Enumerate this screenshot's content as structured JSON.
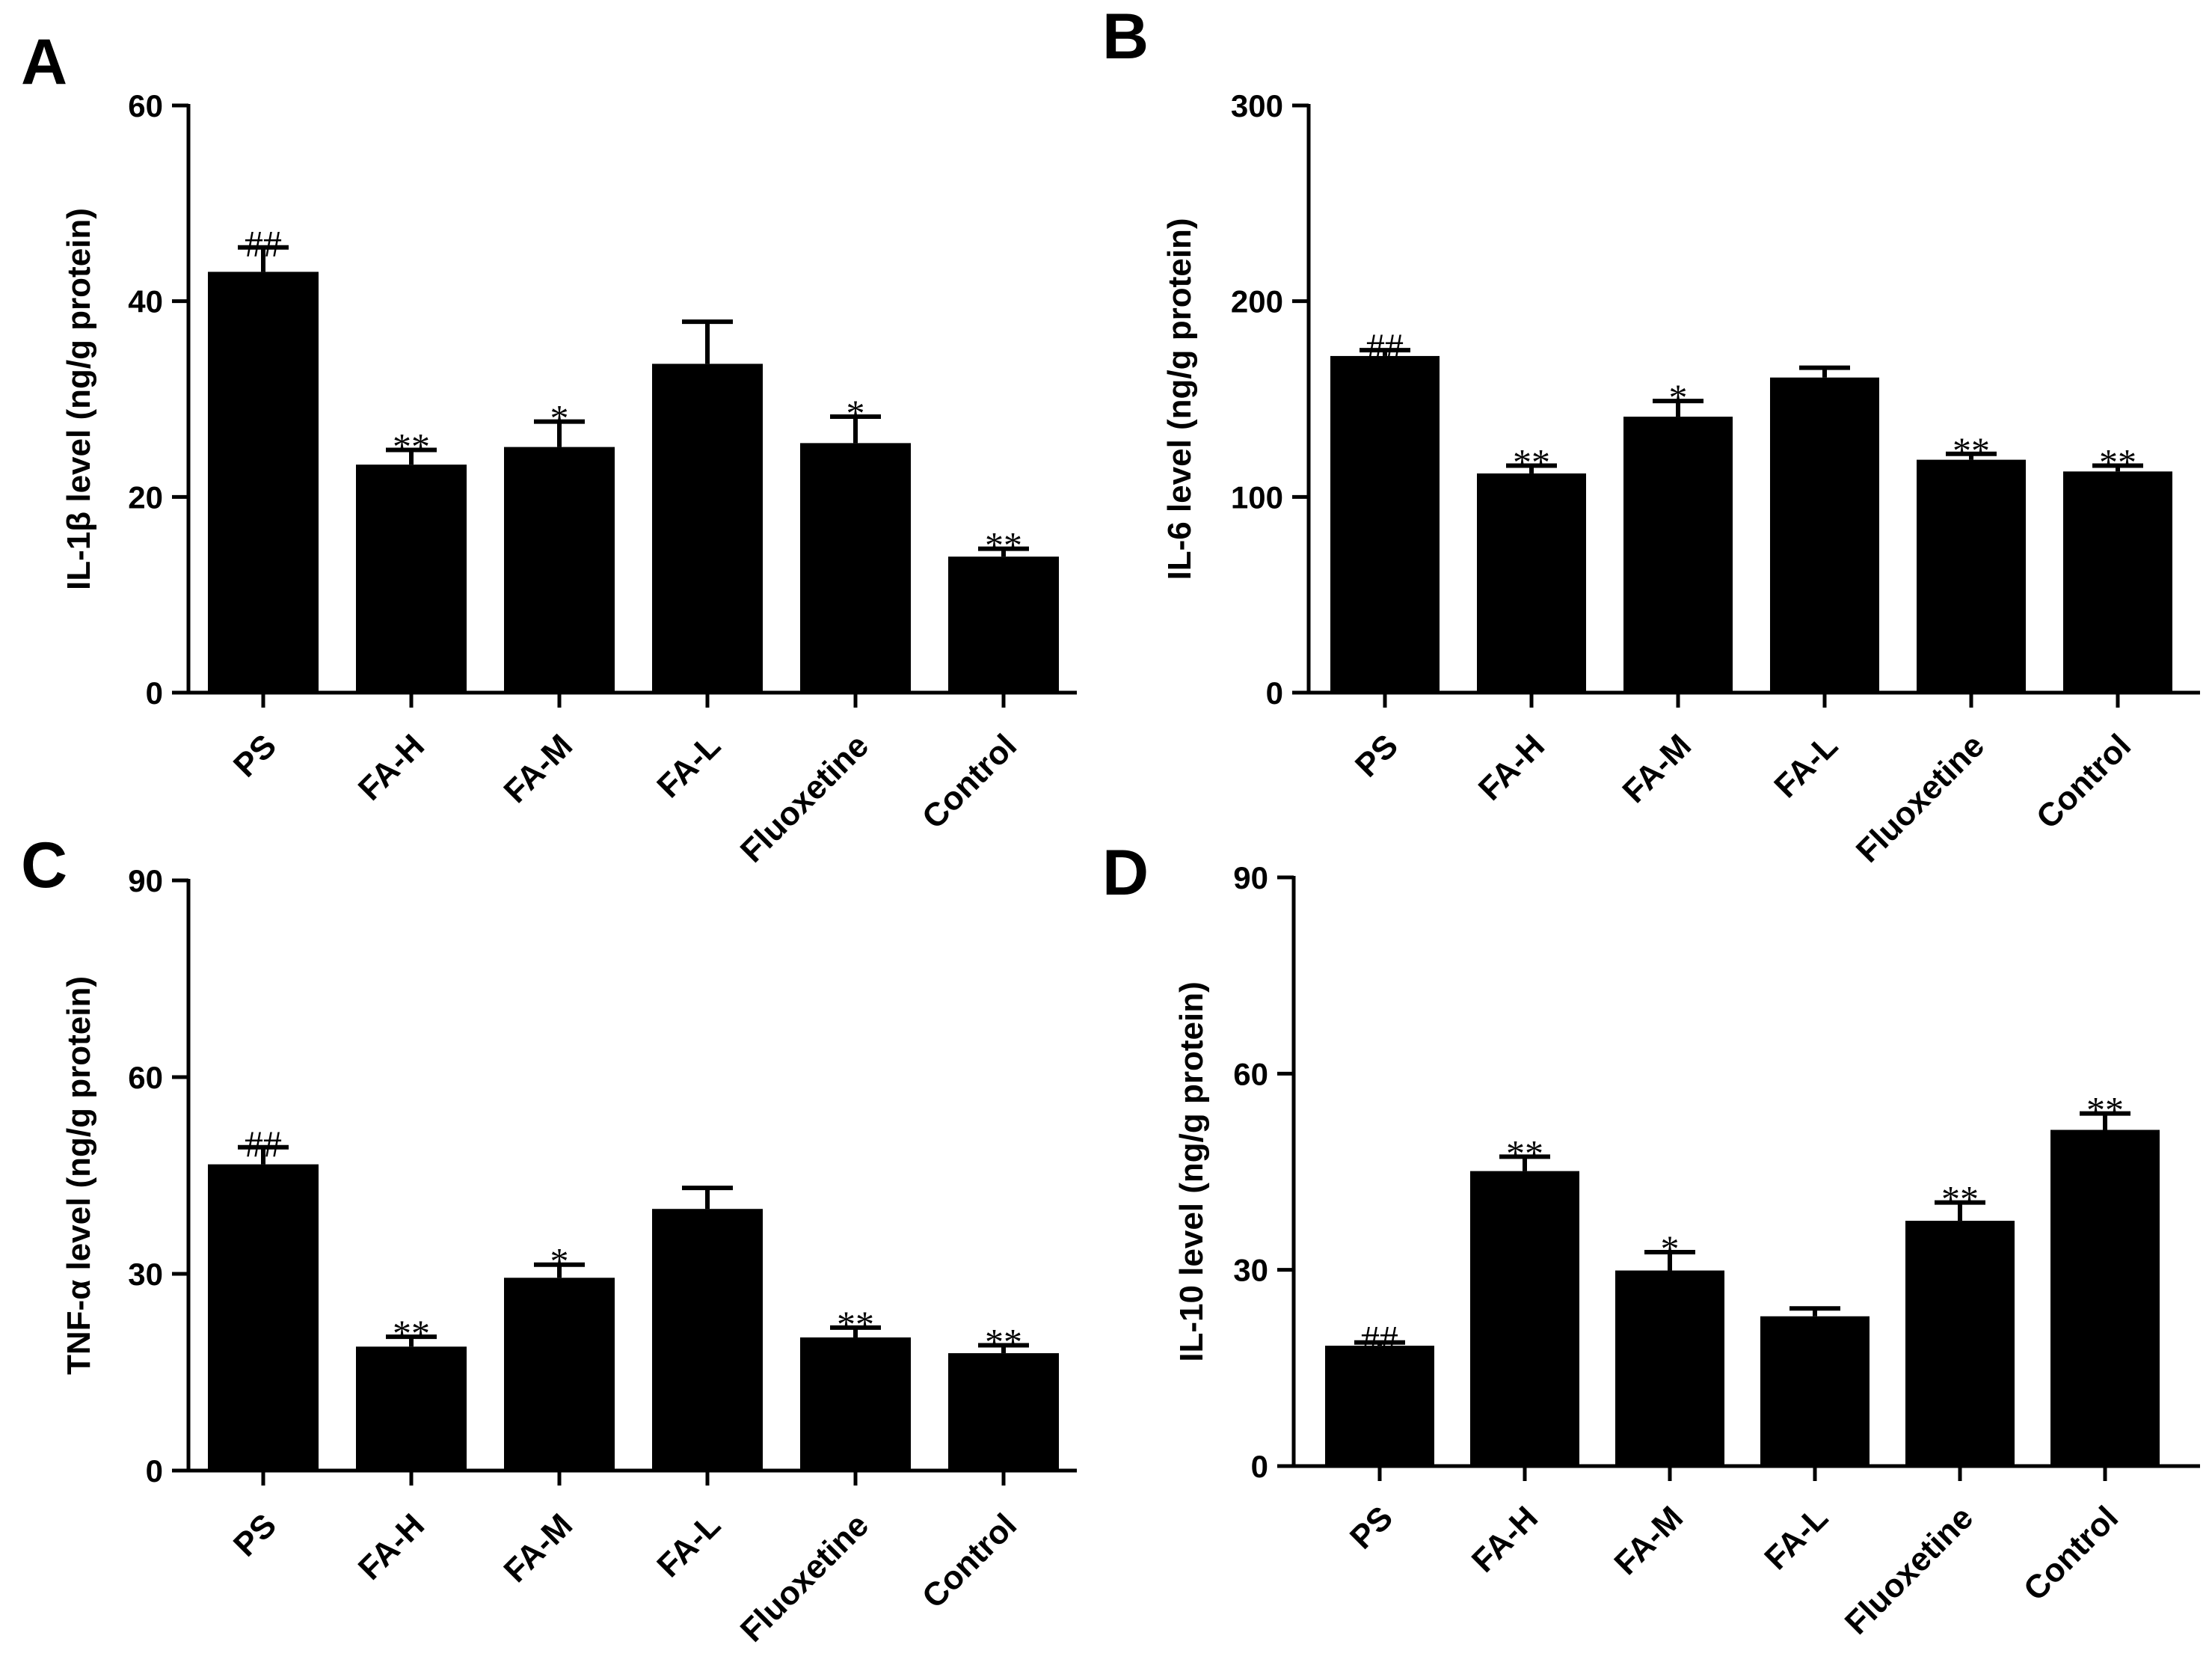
{
  "chart_data": [
    {
      "panel": "A",
      "type": "bar",
      "title": "",
      "xlabel": "",
      "ylabel": "IL-1β level (ng/g protein)",
      "ylim": [
        0,
        60
      ],
      "yticks": [
        0,
        20,
        40,
        60
      ],
      "categories": [
        "PS",
        "FA-H",
        "FA-M",
        "FA-L",
        "Fluoxetine",
        "Control"
      ],
      "values": [
        43,
        23.3,
        25.1,
        33.6,
        25.5,
        13.9
      ],
      "errors": [
        2.5,
        1.5,
        2.6,
        4.3,
        2.7,
        0.8
      ],
      "annotations": [
        "##",
        "**",
        "*",
        "",
        "*",
        "**"
      ]
    },
    {
      "panel": "B",
      "type": "bar",
      "title": "",
      "xlabel": "",
      "ylabel": "IL-6 level (ng/g protein)",
      "ylim": [
        0,
        300
      ],
      "yticks": [
        0,
        100,
        200,
        300
      ],
      "categories": [
        "PS",
        "FA-H",
        "FA-M",
        "FA-L",
        "Fluoxetine",
        "Control"
      ],
      "values": [
        172,
        112,
        141,
        161,
        119,
        113
      ],
      "errors": [
        3,
        4,
        8,
        5,
        3,
        3
      ],
      "annotations": [
        "##",
        "**",
        "*",
        "",
        "**",
        "**"
      ]
    },
    {
      "panel": "C",
      "type": "bar",
      "title": "",
      "xlabel": "",
      "ylabel": "TNF-α level (ng/g protein)",
      "ylim": [
        0,
        90
      ],
      "yticks": [
        0,
        30,
        60,
        90
      ],
      "categories": [
        "PS",
        "FA-H",
        "FA-M",
        "FA-L",
        "Fluoxetine",
        "Control"
      ],
      "values": [
        46.7,
        18.9,
        29.4,
        39.9,
        20.3,
        17.9
      ],
      "errors": [
        2.6,
        1.5,
        2.0,
        3.2,
        1.5,
        1.2
      ],
      "annotations": [
        "##",
        "**",
        "*",
        "",
        "**",
        "**"
      ]
    },
    {
      "panel": "D",
      "type": "bar",
      "title": "",
      "xlabel": "",
      "ylabel": "IL-10 level (ng/g protein)",
      "ylim": [
        0,
        90
      ],
      "yticks": [
        0,
        30,
        60,
        90
      ],
      "categories": [
        "PS",
        "FA-H",
        "FA-M",
        "FA-L",
        "Fluoxetine",
        "Control"
      ],
      "values": [
        18.4,
        45.1,
        29.9,
        22.9,
        37.5,
        51.4
      ],
      "errors": [
        0.5,
        2.2,
        2.8,
        1.2,
        2.8,
        2.5
      ],
      "annotations": [
        "##",
        "**",
        "*",
        "",
        "**",
        "**"
      ]
    }
  ]
}
